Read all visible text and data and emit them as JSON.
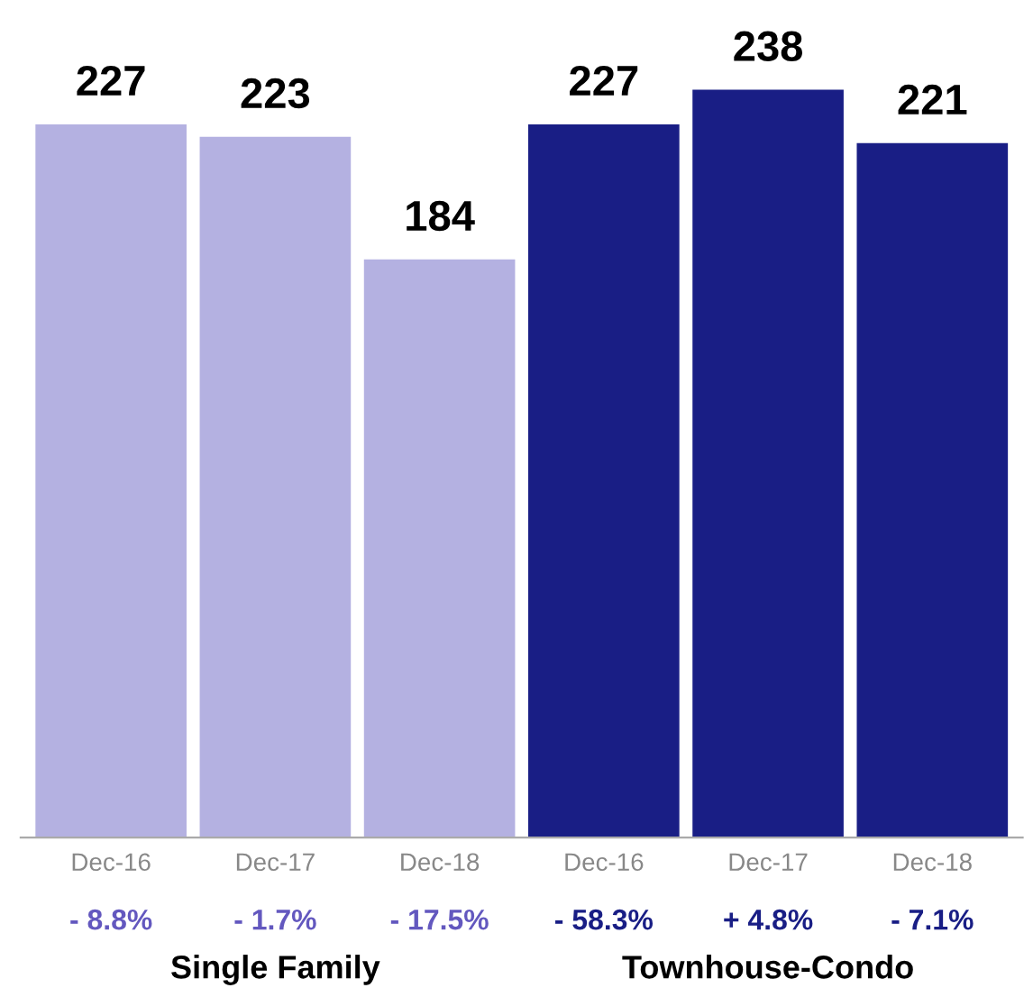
{
  "chart_data": {
    "type": "bar",
    "categories": [
      "Dec-16",
      "Dec-17",
      "Dec-18",
      "Dec-16",
      "Dec-17",
      "Dec-18"
    ],
    "values": [
      227,
      223,
      184,
      227,
      238,
      221
    ],
    "colors": [
      "#b4b1e1",
      "#b4b1e1",
      "#b4b1e1",
      "#191e85",
      "#191e85",
      "#191e85"
    ],
    "data_labels": true,
    "annotations": [
      "- 8.8%",
      "- 1.7%",
      "- 17.5%",
      "- 58.3%",
      "+ 4.8%",
      "- 7.1%",
      "Single Family",
      "Townhouse-Condo"
    ],
    "tick_labels": "x"
  }
}
